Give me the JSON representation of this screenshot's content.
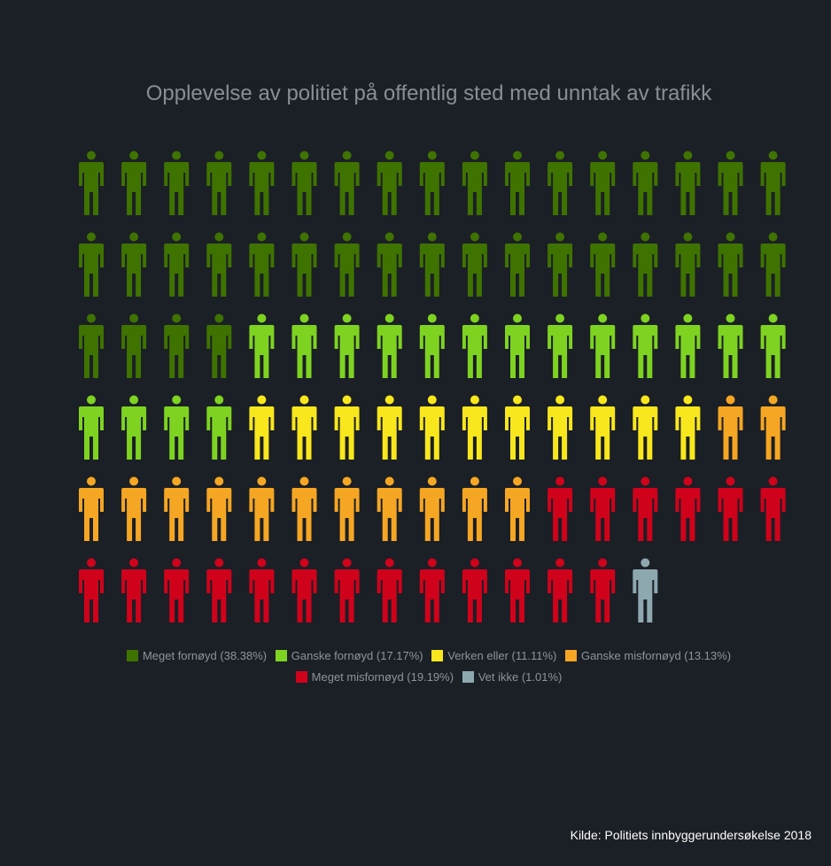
{
  "chart_data": {
    "type": "pictogram",
    "title": "Opplevelse av politiet på offentlig sted med unntak av trafikk",
    "categories": [
      "Meget fornøyd",
      "Ganske fornøyd",
      "Verken eller",
      "Ganske misfornøyd",
      "Meget misfornøyd",
      "Vet ikke"
    ],
    "values": [
      38,
      17,
      11,
      13,
      19,
      1
    ],
    "percent_labels": [
      "38.38%",
      "17.17%",
      "11.11%",
      "13.13%",
      "19.19%",
      "1.01%"
    ],
    "legend_labels": [
      "Meget fornøyd (38.38%)",
      "Ganske fornøyd (17.17%)",
      "Verken eller (11.11%)",
      "Ganske misfornøyd (13.13%)",
      "Meget misfornøyd (19.19%)",
      "Vet ikke (1.01%)"
    ],
    "colors": [
      "#3f7300",
      "#7ed321",
      "#f8e71c",
      "#f5a623",
      "#d0021b",
      "#8ea8b0"
    ],
    "total_icons": 99,
    "icons_per_row": 17,
    "legend_placement": "bottom-center"
  },
  "source": "Kilde: Politiets innbyggerundersøkelse 2018"
}
